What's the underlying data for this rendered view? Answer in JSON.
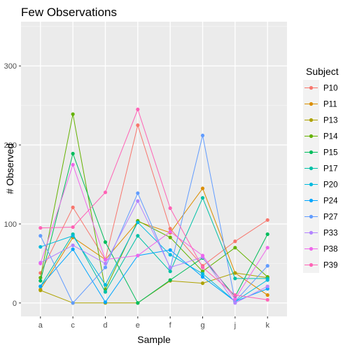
{
  "chart_data": {
    "type": "line",
    "title": "Few Observations",
    "xlabel": "Sample",
    "ylabel": "# Observed",
    "categories": [
      "a",
      "c",
      "d",
      "e",
      "f",
      "g",
      "j",
      "k"
    ],
    "ylim": [
      -17,
      356
    ],
    "yticks": [
      0,
      100,
      200,
      300
    ],
    "grid": true,
    "legend": {
      "title": "Subject",
      "position": "right"
    },
    "series": [
      {
        "name": "P10",
        "color": "#F8766D",
        "values": [
          38,
          121,
          55,
          225,
          94,
          47,
          78,
          105
        ]
      },
      {
        "name": "P11",
        "color": "#DB8E00",
        "values": [
          17,
          83,
          55,
          103,
          89,
          145,
          38,
          10
        ]
      },
      {
        "name": "P13",
        "color": "#AEA200",
        "values": [
          16,
          0,
          0,
          0,
          28,
          25,
          38,
          32
        ]
      },
      {
        "name": "P14",
        "color": "#64B200",
        "values": [
          32,
          239,
          17,
          104,
          83,
          40,
          70,
          33
        ]
      },
      {
        "name": "P15",
        "color": "#00BD5C",
        "values": [
          28,
          189,
          77,
          0,
          29,
          57,
          8,
          87
        ]
      },
      {
        "name": "P17",
        "color": "#00C1A7",
        "values": [
          21,
          87,
          14,
          85,
          40,
          133,
          31,
          31
        ]
      },
      {
        "name": "P20",
        "color": "#00BADE",
        "values": [
          71,
          85,
          23,
          102,
          61,
          37,
          2,
          29
        ]
      },
      {
        "name": "P24",
        "color": "#00A6FF",
        "values": [
          21,
          68,
          1,
          60,
          67,
          33,
          2,
          18
        ]
      },
      {
        "name": "P27",
        "color": "#619CFF",
        "values": [
          85,
          0,
          45,
          139,
          44,
          212,
          2,
          47
        ]
      },
      {
        "name": "P33",
        "color": "#B385FF",
        "values": [
          51,
          73,
          50,
          129,
          45,
          58,
          0,
          21
        ]
      },
      {
        "name": "P38",
        "color": "#EF67EB",
        "values": [
          50,
          175,
          55,
          60,
          90,
          60,
          5,
          70
        ]
      },
      {
        "name": "P39",
        "color": "#FF63B6",
        "values": [
          95,
          96,
          140,
          245,
          120,
          45,
          10,
          4
        ]
      }
    ]
  }
}
